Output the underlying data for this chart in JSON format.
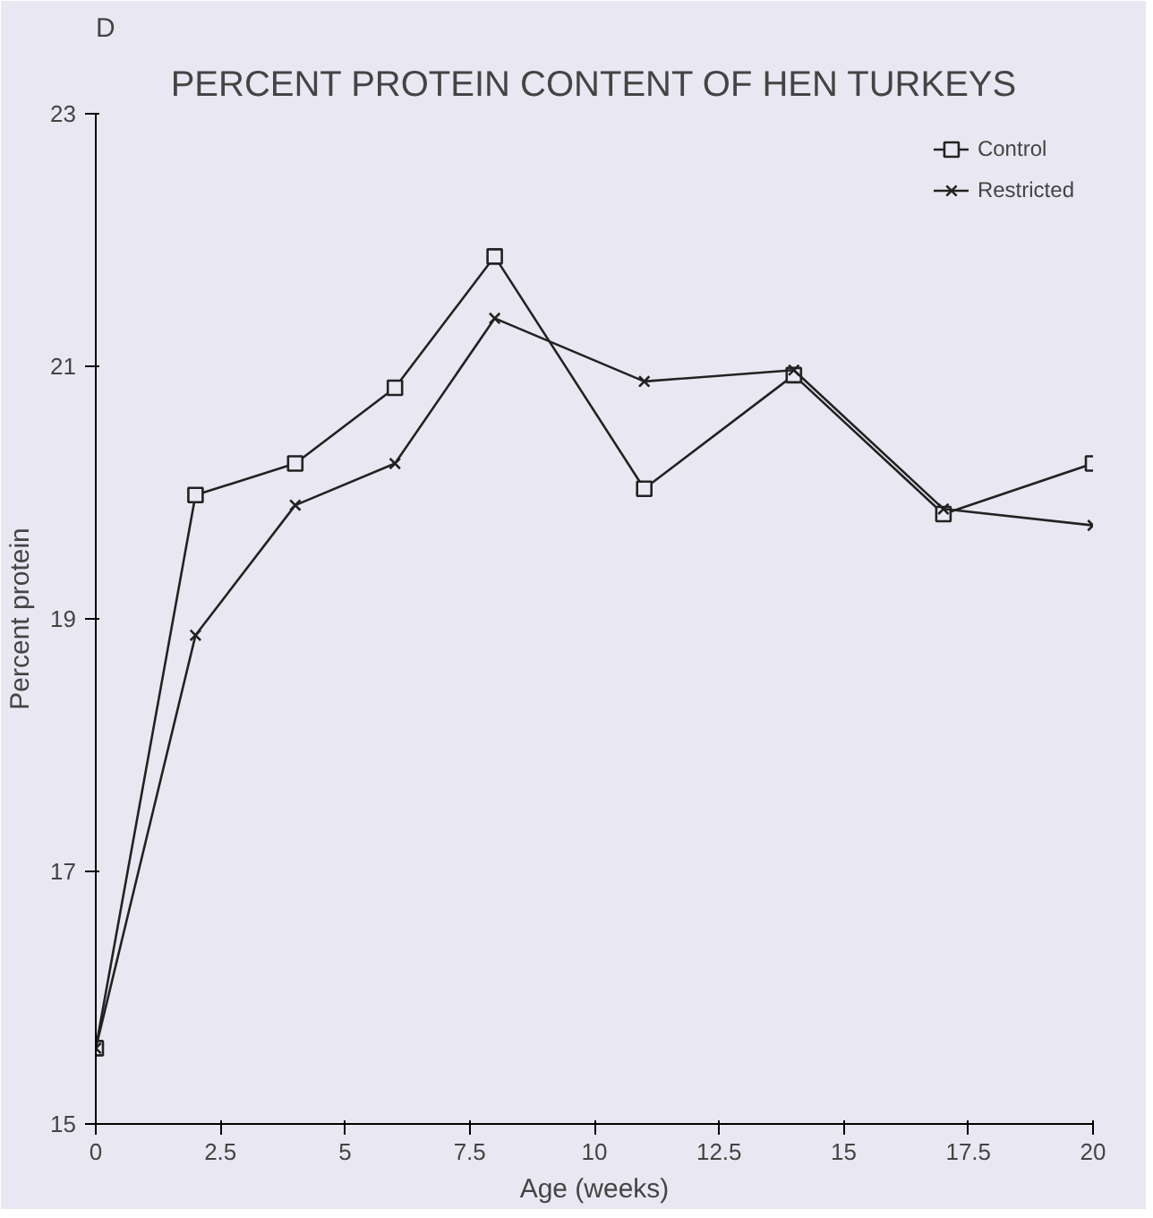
{
  "chart_data": {
    "type": "line",
    "title": "PERCENT PROTEIN CONTENT OF HEN TURKEYS",
    "xlabel": "Age (weeks)",
    "ylabel": "Percent protein",
    "annotations": [
      "D"
    ],
    "x": [
      0,
      2,
      4,
      6,
      8,
      11,
      14,
      17,
      20
    ],
    "series": [
      {
        "name": "Control",
        "color": "#222222",
        "marker": "square",
        "values": [
          15.6,
          19.98,
          20.23,
          20.83,
          21.87,
          20.03,
          20.93,
          19.83,
          20.23
        ]
      },
      {
        "name": "Restricted",
        "color": "#222222",
        "marker": "cross",
        "values": [
          15.6,
          18.87,
          19.9,
          20.23,
          21.38,
          20.88,
          20.97,
          19.87,
          19.74
        ]
      }
    ],
    "xlim": [
      0,
      20
    ],
    "ylim": [
      15,
      23
    ],
    "xticks": [
      0,
      2.5,
      5,
      7.5,
      10,
      12.5,
      15,
      17.5,
      20
    ],
    "yticks": [
      15,
      17,
      19,
      21,
      23
    ],
    "grid": false,
    "legend": "top right",
    "line_style": "solid"
  }
}
